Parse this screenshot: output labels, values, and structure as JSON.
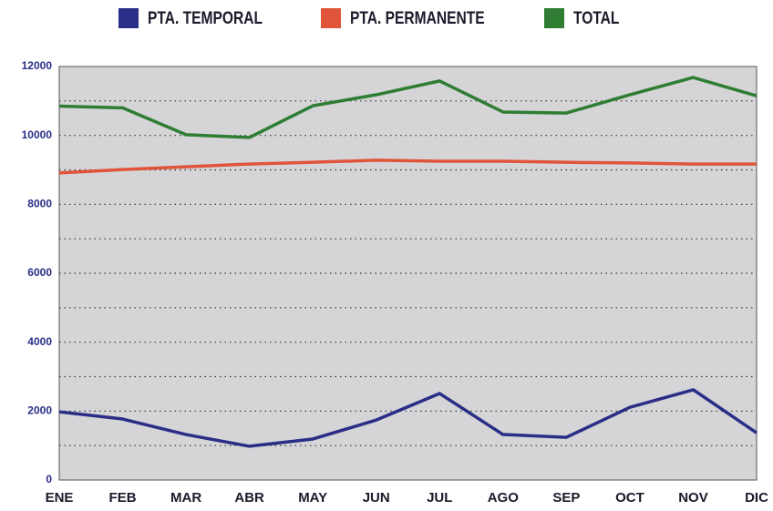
{
  "chart_data": {
    "type": "line",
    "categories": [
      "ENE",
      "FEB",
      "MAR",
      "ABR",
      "MAY",
      "JUN",
      "JUL",
      "AGO",
      "SEP",
      "OCT",
      "NOV",
      "DIC"
    ],
    "series": [
      {
        "name": "PTA. TEMPORAL",
        "color": "#2a2e86",
        "values": [
          1980,
          1770,
          1320,
          980,
          1190,
          1740,
          2510,
          1320,
          1240,
          2110,
          2620,
          1370
        ]
      },
      {
        "name": "PTA. PERMANENTE",
        "color": "#e0553a",
        "values": [
          8910,
          9010,
          9090,
          9170,
          9220,
          9280,
          9250,
          9250,
          9220,
          9200,
          9170,
          9170
        ]
      },
      {
        "name": "TOTAL",
        "color": "#2e7d32",
        "values": [
          10850,
          10800,
          10020,
          9940,
          10860,
          11180,
          11580,
          10680,
          10650,
          11180,
          11680,
          11150
        ]
      }
    ],
    "ylim": [
      0,
      12000
    ],
    "yticks": [
      0,
      2000,
      4000,
      6000,
      8000,
      10000,
      12000
    ],
    "minor_yticks": [
      1000,
      3000,
      5000,
      7000,
      9000,
      11000
    ],
    "grid": true,
    "legend": "top"
  }
}
